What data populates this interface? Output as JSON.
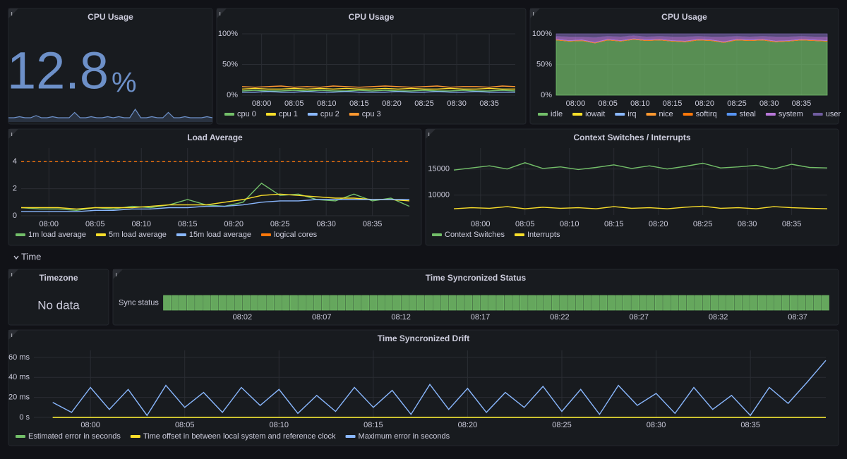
{
  "section_title": "Time",
  "chart_data": [
    {
      "type": "stat",
      "title": "CPU Usage",
      "value": 12.8,
      "unit": "%",
      "color": "#6d90c8",
      "sparkline": [
        4,
        4,
        5,
        4,
        4,
        6,
        4,
        4,
        5,
        4,
        4,
        4,
        9,
        4,
        4,
        5,
        4,
        4,
        5,
        4,
        5,
        4,
        4,
        12,
        4,
        4,
        5,
        4,
        4,
        9,
        4,
        4,
        5,
        4,
        4,
        4,
        5,
        4
      ]
    },
    {
      "type": "line",
      "title": "CPU Usage",
      "grid": true,
      "x": [
        "07:57",
        "07:59",
        "08:01",
        "08:03",
        "08:05",
        "08:07",
        "08:09",
        "08:11",
        "08:13",
        "08:15",
        "08:17",
        "08:19",
        "08:21",
        "08:23",
        "08:25",
        "08:27",
        "08:29",
        "08:31",
        "08:33",
        "08:35",
        "08:37",
        "08:39"
      ],
      "xlim": [
        "07:57",
        "08:39"
      ],
      "xticks": [
        "08:00",
        "08:05",
        "08:10",
        "08:15",
        "08:20",
        "08:25",
        "08:30",
        "08:35"
      ],
      "ylim": [
        0,
        100
      ],
      "yticks": [
        {
          "value": 0,
          "label": "0%"
        },
        {
          "value": 50,
          "label": "50%"
        },
        {
          "value": 100,
          "label": "100%"
        }
      ],
      "series": [
        {
          "name": "cpu 0",
          "color": "#73bf69",
          "values": [
            7,
            8,
            7,
            7,
            8,
            7,
            8,
            7,
            7,
            8,
            7,
            8,
            7,
            7,
            8,
            7,
            7,
            8,
            7,
            7,
            8,
            7
          ]
        },
        {
          "name": "cpu 1",
          "color": "#fade2a",
          "values": [
            10,
            11,
            10,
            10,
            11,
            10,
            11,
            10,
            11,
            10,
            10,
            11,
            10,
            11,
            10,
            10,
            11,
            10,
            10,
            11,
            10,
            10
          ]
        },
        {
          "name": "cpu 2",
          "color": "#8ab8ff",
          "values": [
            5,
            5,
            6,
            5,
            5,
            6,
            5,
            5,
            6,
            5,
            5,
            5,
            6,
            5,
            5,
            6,
            5,
            5,
            6,
            5,
            5,
            5
          ]
        },
        {
          "name": "cpu 3",
          "color": "#ff9830",
          "values": [
            14,
            13,
            14,
            15,
            13,
            14,
            13,
            15,
            14,
            13,
            14,
            15,
            14,
            13,
            14,
            15,
            13,
            14,
            14,
            13,
            15,
            14
          ]
        }
      ]
    },
    {
      "type": "area",
      "stacked": true,
      "title": "CPU Usage",
      "grid": true,
      "x": [
        "07:57",
        "07:59",
        "08:01",
        "08:03",
        "08:05",
        "08:07",
        "08:09",
        "08:11",
        "08:13",
        "08:15",
        "08:17",
        "08:19",
        "08:21",
        "08:23",
        "08:25",
        "08:27",
        "08:29",
        "08:31",
        "08:33",
        "08:35",
        "08:37",
        "08:39"
      ],
      "xlim": [
        "07:57",
        "08:39"
      ],
      "xticks": [
        "08:00",
        "08:05",
        "08:10",
        "08:15",
        "08:20",
        "08:25",
        "08:30",
        "08:35"
      ],
      "ylim": [
        0,
        100
      ],
      "yticks": [
        {
          "value": 0,
          "label": "0%"
        },
        {
          "value": 50,
          "label": "50%"
        },
        {
          "value": 100,
          "label": "100%"
        }
      ],
      "series": [
        {
          "name": "idle",
          "color": "#73bf69",
          "values": [
            90,
            88,
            89,
            85,
            90,
            88,
            91,
            89,
            90,
            88,
            87,
            90,
            89,
            86,
            90,
            89,
            90,
            87,
            88,
            90,
            89,
            88
          ]
        },
        {
          "name": "iowait",
          "color": "#fade2a",
          "values": [
            0,
            0,
            0,
            0,
            0,
            0,
            0,
            0,
            0,
            0,
            0,
            0,
            0,
            0,
            0,
            0,
            0,
            0,
            0,
            0,
            0,
            0
          ]
        },
        {
          "name": "irq",
          "color": "#8ab8ff",
          "values": [
            0,
            0,
            0,
            0,
            0,
            0,
            0,
            0,
            0,
            0,
            0,
            0,
            0,
            0,
            0,
            0,
            0,
            0,
            0,
            0,
            0,
            0
          ]
        },
        {
          "name": "nice",
          "color": "#ff9830",
          "values": [
            0,
            0,
            0,
            0,
            0,
            0,
            0,
            0,
            0,
            0,
            0,
            0,
            0,
            0,
            0,
            0,
            0,
            0,
            0,
            0,
            0,
            0
          ]
        },
        {
          "name": "softirq",
          "color": "#ff780a",
          "values": [
            1,
            1,
            1,
            1,
            1,
            1,
            1,
            1,
            1,
            1,
            1,
            1,
            1,
            1,
            1,
            1,
            1,
            1,
            1,
            1,
            1,
            1
          ]
        },
        {
          "name": "steal",
          "color": "#5794f2",
          "values": [
            0,
            0,
            0,
            0,
            0,
            0,
            0,
            0,
            0,
            0,
            0,
            0,
            0,
            0,
            0,
            0,
            0,
            0,
            0,
            0,
            0,
            0
          ]
        },
        {
          "name": "system",
          "color": "#b877d9",
          "values": [
            5,
            6,
            5,
            8,
            5,
            6,
            5,
            5,
            5,
            6,
            7,
            5,
            5,
            8,
            5,
            5,
            5,
            7,
            6,
            5,
            5,
            6
          ]
        },
        {
          "name": "user",
          "color": "#705da0",
          "values": [
            4,
            5,
            5,
            6,
            4,
            5,
            3,
            5,
            4,
            5,
            5,
            4,
            5,
            5,
            4,
            5,
            4,
            5,
            5,
            4,
            5,
            5
          ]
        }
      ]
    },
    {
      "type": "line",
      "title": "Load Average",
      "grid": true,
      "x": [
        "07:57",
        "07:59",
        "08:01",
        "08:03",
        "08:05",
        "08:07",
        "08:09",
        "08:11",
        "08:13",
        "08:15",
        "08:17",
        "08:19",
        "08:21",
        "08:23",
        "08:25",
        "08:27",
        "08:29",
        "08:31",
        "08:33",
        "08:35",
        "08:37",
        "08:39"
      ],
      "xlim": [
        "07:57",
        "08:39"
      ],
      "xticks": [
        "08:00",
        "08:05",
        "08:10",
        "08:15",
        "08:20",
        "08:25",
        "08:30",
        "08:35"
      ],
      "ylim": [
        0,
        5
      ],
      "yticks": [
        0,
        2,
        4
      ],
      "series": [
        {
          "name": "1m load average",
          "color": "#73bf69",
          "values": [
            0.6,
            0.5,
            0.5,
            0.4,
            0.6,
            0.5,
            0.7,
            0.6,
            0.8,
            1.2,
            0.8,
            0.7,
            1.0,
            2.4,
            1.5,
            1.6,
            1.2,
            1.1,
            1.6,
            1.1,
            1.3,
            0.7
          ]
        },
        {
          "name": "5m load average",
          "color": "#fade2a",
          "values": [
            0.6,
            0.6,
            0.6,
            0.5,
            0.6,
            0.6,
            0.6,
            0.7,
            0.8,
            0.8,
            0.8,
            1.0,
            1.2,
            1.5,
            1.6,
            1.5,
            1.4,
            1.3,
            1.3,
            1.2,
            1.2,
            1.1
          ]
        },
        {
          "name": "15m load average",
          "color": "#8ab8ff",
          "values": [
            0.3,
            0.3,
            0.3,
            0.3,
            0.4,
            0.4,
            0.5,
            0.5,
            0.6,
            0.6,
            0.7,
            0.7,
            0.8,
            1.0,
            1.1,
            1.1,
            1.2,
            1.2,
            1.2,
            1.2,
            1.2,
            1.2
          ]
        },
        {
          "name": "logical cores",
          "color": "#ff780a",
          "dashed": true,
          "values": [
            4,
            4,
            4,
            4,
            4,
            4,
            4,
            4,
            4,
            4,
            4,
            4,
            4,
            4,
            4,
            4,
            4,
            4,
            4,
            4,
            4,
            4
          ]
        }
      ]
    },
    {
      "type": "line",
      "title": "Context Switches / Interrupts",
      "grid": true,
      "x": [
        "07:57",
        "07:59",
        "08:01",
        "08:03",
        "08:05",
        "08:07",
        "08:09",
        "08:11",
        "08:13",
        "08:15",
        "08:17",
        "08:19",
        "08:21",
        "08:23",
        "08:25",
        "08:27",
        "08:29",
        "08:31",
        "08:33",
        "08:35",
        "08:37",
        "08:39"
      ],
      "xlim": [
        "07:57",
        "08:39"
      ],
      "xticks": [
        "08:00",
        "08:05",
        "08:10",
        "08:15",
        "08:20",
        "08:25",
        "08:30",
        "08:35"
      ],
      "ylim": [
        6200,
        19000
      ],
      "yticks": [
        10000,
        15000
      ],
      "series": [
        {
          "name": "Context Switches",
          "color": "#73bf69",
          "values": [
            14800,
            15200,
            15600,
            15000,
            16200,
            15100,
            15400,
            14900,
            15300,
            15800,
            15100,
            15600,
            15000,
            15500,
            16100,
            15200,
            15400,
            15700,
            15000,
            15900,
            15300,
            15200
          ]
        },
        {
          "name": "Interrupts",
          "color": "#fade2a",
          "values": [
            7400,
            7600,
            7500,
            7800,
            7400,
            7700,
            7500,
            7600,
            7400,
            7800,
            7500,
            7600,
            7400,
            7700,
            7900,
            7500,
            7600,
            7400,
            7800,
            7600,
            7500,
            7400
          ]
        }
      ]
    },
    {
      "type": "stat",
      "title": "Timezone",
      "message": "No data"
    },
    {
      "type": "state-timeline",
      "title": "Time Syncronized Status",
      "row_label": "Sync status",
      "color": "#73bf69",
      "xlim": [
        "07:57",
        "08:39"
      ],
      "xticks": [
        "08:02",
        "08:07",
        "08:12",
        "08:17",
        "08:22",
        "08:27",
        "08:32",
        "08:37"
      ],
      "values": [
        1,
        1,
        1,
        1,
        1,
        1,
        1,
        1,
        1,
        1,
        1,
        1,
        1,
        1,
        1,
        1,
        1,
        1,
        1,
        1,
        1,
        1,
        1,
        1,
        1,
        1,
        1,
        1,
        1,
        1,
        1,
        1,
        1,
        1,
        1,
        1,
        1,
        1,
        1,
        1,
        1,
        1,
        1,
        1,
        1,
        1,
        1,
        1,
        1,
        1,
        1,
        1,
        1,
        1,
        1,
        1,
        1,
        1,
        1,
        1,
        1,
        1,
        1,
        1,
        1,
        1,
        1,
        1,
        1,
        1,
        1,
        1,
        1,
        1,
        1,
        1,
        1,
        1,
        1,
        1,
        1,
        1,
        1,
        1
      ]
    },
    {
      "type": "line",
      "title": "Time Syncronized Drift",
      "grid": true,
      "x": [
        "07:58",
        "07:59",
        "08:00",
        "08:01",
        "08:02",
        "08:03",
        "08:04",
        "08:05",
        "08:06",
        "08:07",
        "08:08",
        "08:09",
        "08:10",
        "08:11",
        "08:12",
        "08:13",
        "08:14",
        "08:15",
        "08:16",
        "08:17",
        "08:18",
        "08:19",
        "08:20",
        "08:21",
        "08:22",
        "08:23",
        "08:24",
        "08:25",
        "08:26",
        "08:27",
        "08:28",
        "08:29",
        "08:30",
        "08:31",
        "08:32",
        "08:33",
        "08:34",
        "08:35",
        "08:36",
        "08:37",
        "08:38",
        "08:39"
      ],
      "xlim": [
        "07:57",
        "08:39"
      ],
      "xticks": [
        "08:00",
        "08:05",
        "08:10",
        "08:15",
        "08:20",
        "08:25",
        "08:30",
        "08:35"
      ],
      "ylim": [
        0,
        67
      ],
      "yticks": [
        {
          "value": 0,
          "label": "0 s"
        },
        {
          "value": 20,
          "label": "20 ms"
        },
        {
          "value": 40,
          "label": "40 ms"
        },
        {
          "value": 60,
          "label": "60 ms"
        }
      ],
      "series": [
        {
          "name": "Estimated error in seconds",
          "color": "#73bf69",
          "values": [
            0,
            0,
            0,
            0,
            0,
            0,
            0,
            0,
            0,
            0,
            0,
            0,
            0,
            0,
            0,
            0,
            0,
            0,
            0,
            0,
            0,
            0,
            0,
            0,
            0,
            0,
            0,
            0,
            0,
            0,
            0,
            0,
            0,
            0,
            0,
            0,
            0,
            0,
            0,
            0,
            0,
            0
          ]
        },
        {
          "name": "Time offset in between local system and reference clock",
          "color": "#fade2a",
          "values": [
            0,
            0,
            0,
            0,
            0,
            0,
            0,
            0,
            0,
            0,
            0,
            0,
            0,
            0,
            0,
            0,
            0,
            0,
            0,
            0,
            0,
            0,
            0,
            0,
            0,
            0,
            0,
            0,
            0,
            0,
            0,
            0,
            0,
            0,
            0,
            0,
            0,
            0,
            0,
            0,
            0,
            0
          ]
        },
        {
          "name": "Maximum error in seconds",
          "color": "#8ab8ff",
          "values": [
            15,
            5,
            30,
            8,
            28,
            2,
            32,
            10,
            25,
            5,
            30,
            12,
            28,
            4,
            22,
            6,
            30,
            10,
            27,
            3,
            33,
            8,
            29,
            5,
            25,
            10,
            31,
            6,
            28,
            3,
            32,
            12,
            24,
            4,
            30,
            8,
            22,
            2,
            30,
            14,
            35,
            57
          ]
        }
      ]
    }
  ]
}
